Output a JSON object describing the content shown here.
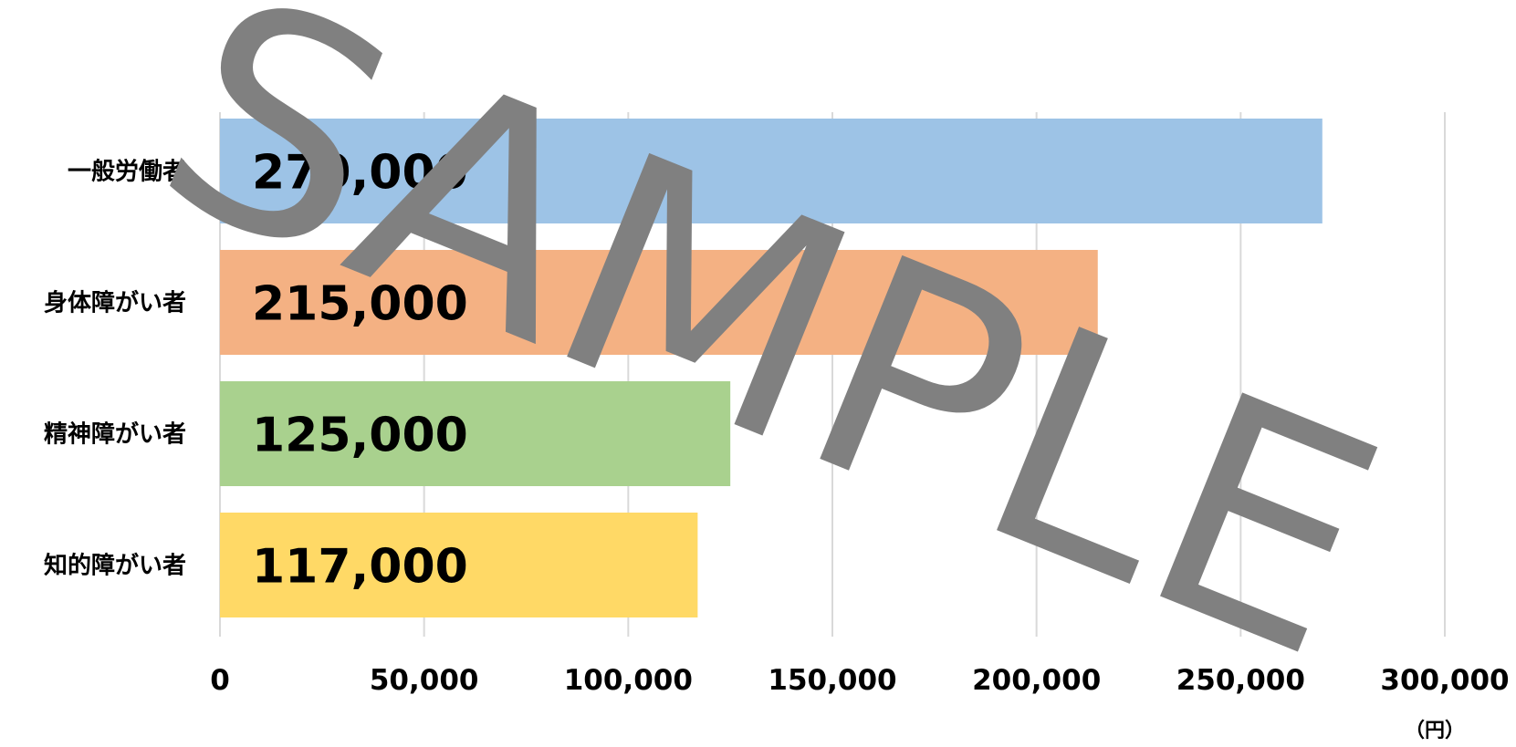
{
  "chart_data": {
    "type": "bar",
    "orientation": "horizontal",
    "categories": [
      "一般労働者",
      "身体障がい者",
      "精神障がい者",
      "知的障がい者"
    ],
    "values": [
      270000,
      215000,
      125000,
      117000
    ],
    "data_labels": [
      "270,000",
      "215,000",
      "125,000",
      "117,000"
    ],
    "colors": [
      "#9dc3e6",
      "#f4b183",
      "#a9d18e",
      "#ffd966"
    ],
    "xlim": [
      0,
      300000
    ],
    "xticks": [
      0,
      50000,
      100000,
      150000,
      200000,
      250000,
      300000
    ],
    "xtick_labels": [
      "0",
      "50,000",
      "100,000",
      "150,000",
      "200,000",
      "250,000",
      "300,000"
    ],
    "unit": "（円）",
    "grid": "vertical",
    "legend": "none",
    "gridline_color": "#d9d9d9"
  },
  "watermark": {
    "text": "SAMPLE",
    "color": "#808080"
  }
}
